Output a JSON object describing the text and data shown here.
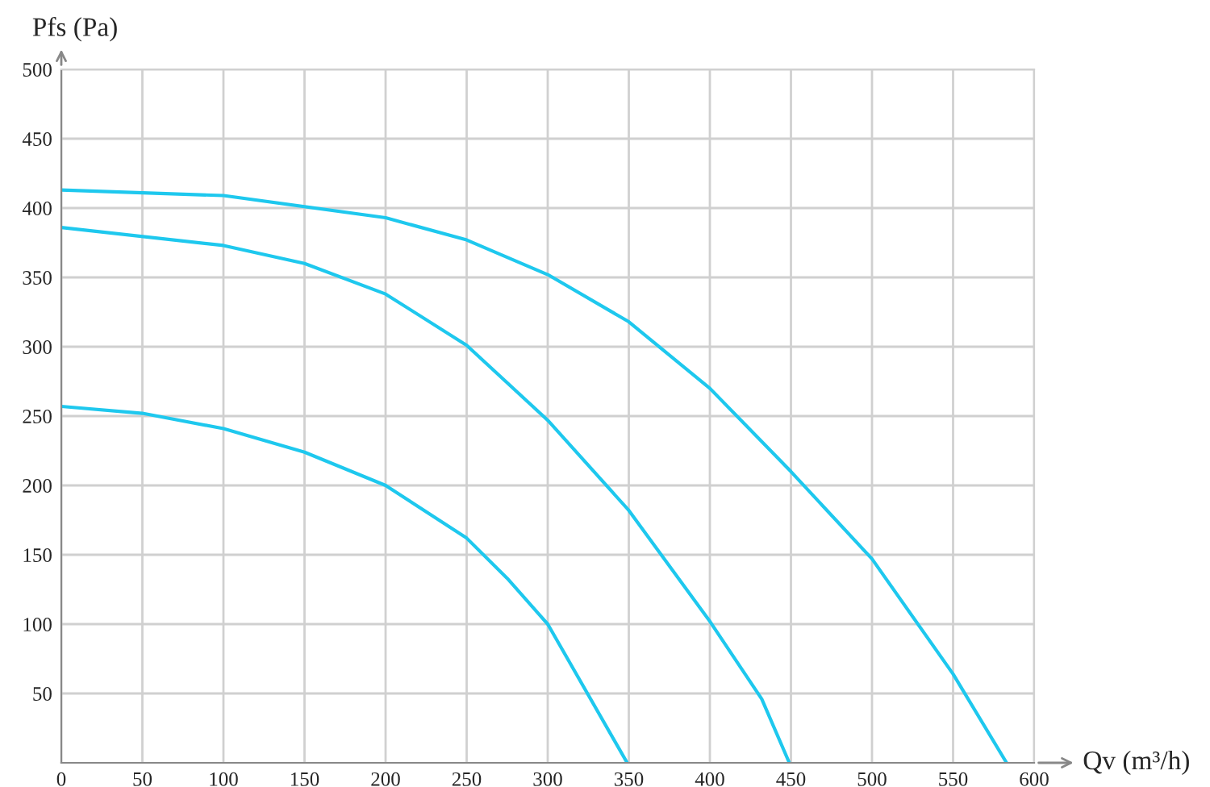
{
  "chart_data": {
    "type": "line",
    "xlabel": "Qv (m³/h)",
    "ylabel": "Pfs (Pa)",
    "xlim": [
      0,
      600
    ],
    "ylim": [
      0,
      500
    ],
    "xticks": [
      0,
      50,
      100,
      150,
      200,
      250,
      300,
      350,
      400,
      450,
      500,
      550,
      600
    ],
    "yticks": [
      50,
      100,
      150,
      200,
      250,
      300,
      350,
      400,
      450,
      500
    ],
    "grid": true,
    "marker": "none",
    "line_style": "solid",
    "series": [
      {
        "color": "#1ec8ee",
        "x": [
          0,
          100,
          200,
          250,
          300,
          350,
          400,
          450,
          500,
          550,
          583
        ],
        "values": [
          413,
          409,
          393,
          377,
          352,
          318,
          270,
          210,
          147,
          64,
          0
        ]
      },
      {
        "color": "#1ec8ee",
        "x": [
          0,
          100,
          150,
          200,
          250,
          300,
          350,
          400,
          432,
          449
        ],
        "values": [
          386,
          373,
          360,
          338,
          301,
          247,
          182,
          102,
          46,
          0
        ]
      },
      {
        "color": "#1ec8ee",
        "x": [
          0,
          50,
          100,
          150,
          200,
          250,
          275,
          300,
          349
        ],
        "values": [
          257,
          252,
          241,
          224,
          200,
          162,
          133,
          100,
          0
        ]
      }
    ]
  }
}
